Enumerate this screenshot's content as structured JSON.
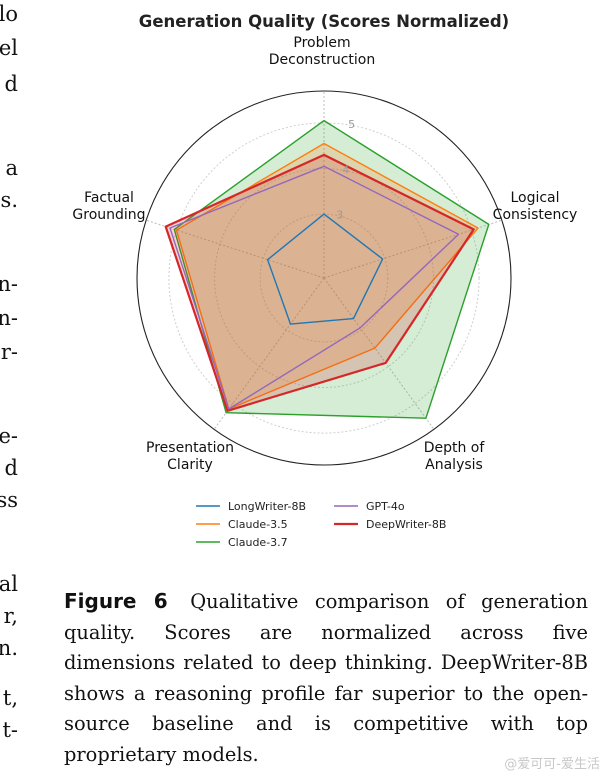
{
  "left_fragments": [
    "lo",
    "el",
    "d",
    "a",
    "s.",
    "n-",
    "n-",
    "r-",
    "e-",
    "d",
    "ss",
    "al",
    "r,",
    "n.",
    "t,",
    "t-"
  ],
  "chart_data": {
    "type": "radar",
    "title": "Generation Quality (Scores Normalized)",
    "axes": [
      "Problem\nDeconstruction",
      "Logical\nConsistency",
      "Depth of\nAnalysis",
      "Presentation\nClarity",
      "Factual\nGrounding"
    ],
    "rlim": [
      1.6,
      5.7
    ],
    "r_ticks": [
      3,
      4,
      5
    ],
    "grid": true,
    "legend_position": "bottom",
    "series": [
      {
        "name": "LongWriter-8B",
        "color": "#1f77b4",
        "values": [
          3.0,
          2.95,
          2.7,
          2.85,
          2.9
        ],
        "fill": false
      },
      {
        "name": "Claude-3.5",
        "color": "#ff7f0e",
        "values": [
          4.55,
          5.15,
          3.5,
          5.15,
          5.0
        ],
        "fill": true
      },
      {
        "name": "Claude-3.7",
        "color": "#2ca02c",
        "values": [
          5.05,
          5.4,
          5.4,
          5.25,
          5.05
        ],
        "fill": true
      },
      {
        "name": "GPT-4o",
        "color": "#9467bd",
        "values": [
          4.05,
          4.7,
          2.95,
          5.15,
          5.15
        ],
        "fill": false
      },
      {
        "name": "DeepWriter-8B",
        "color": "#d62728",
        "values": [
          4.3,
          5.05,
          3.9,
          5.2,
          5.25
        ],
        "fill": true
      }
    ]
  },
  "caption": {
    "label": "Figure 6",
    "text": "Qualitative comparison of generation quality. Scores are normalized across five dimensions related to deep thinking. DeepWriter-8B shows a reasoning profile far superior to the open-source baseline and is competitive with top proprietary models."
  },
  "watermark": "@爱可可-爱生活"
}
